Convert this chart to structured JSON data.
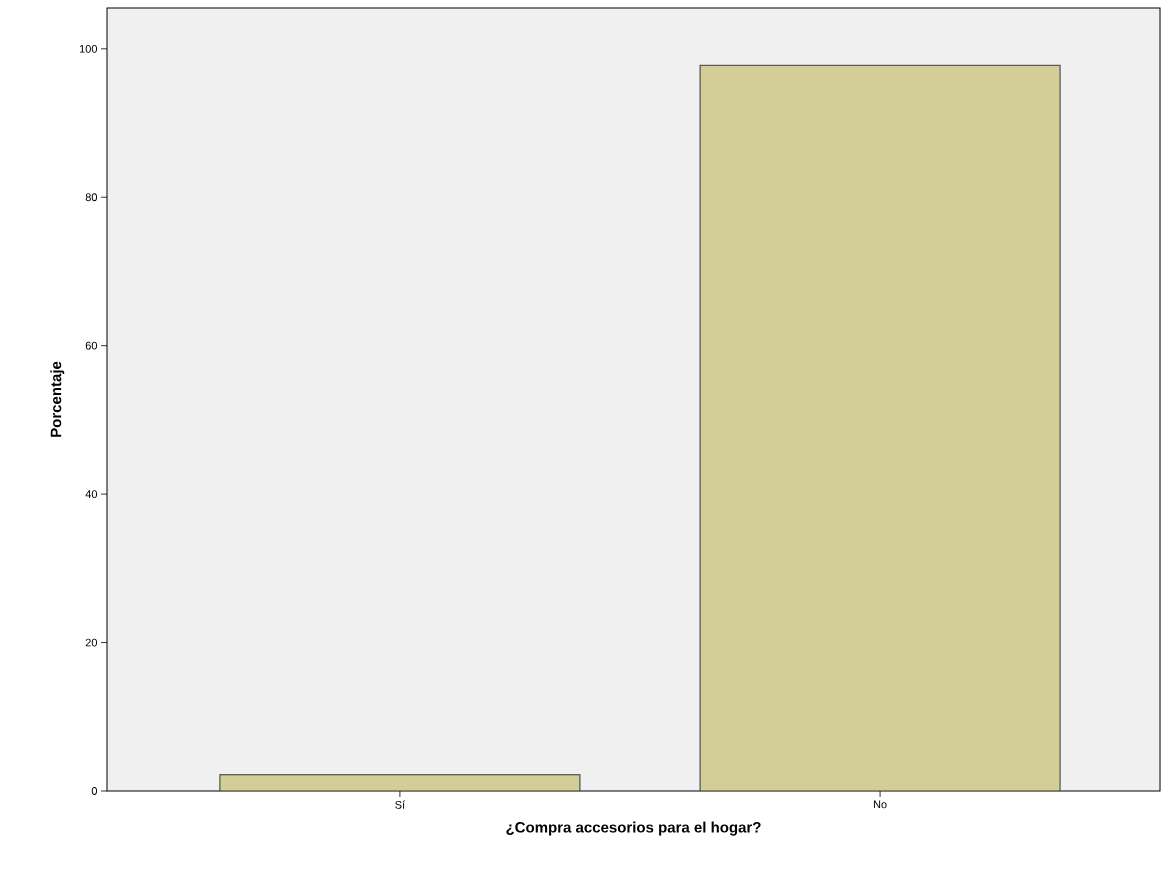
{
  "chart_data": {
    "type": "bar",
    "xlabel": "¿Compra accesorios para el hogar?",
    "ylabel": "Porcentaje",
    "categories": [
      "Sí",
      "No"
    ],
    "values": [
      2.2,
      97.8
    ],
    "color": "#d3ce97",
    "ylim": [
      0,
      105.5
    ],
    "yticks": [
      0,
      20,
      40,
      60,
      80,
      100
    ],
    "grid": false
  }
}
